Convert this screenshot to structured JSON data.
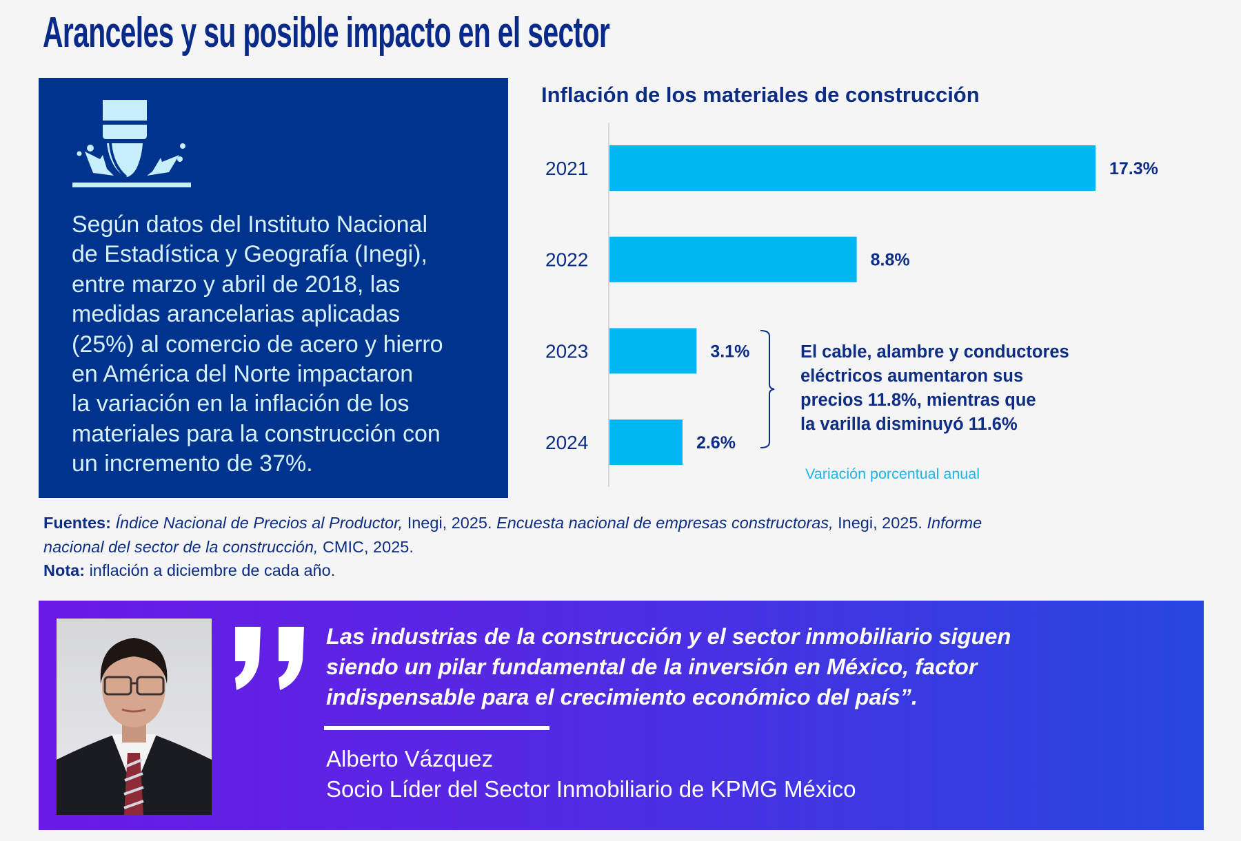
{
  "header": {
    "title": "Aranceles y su posible impacto en el sector"
  },
  "info_box": {
    "icon": "laser-cutting-icon",
    "lines": [
      "Según datos del Instituto Nacional",
      "de Estadística y Geografía (Inegi),",
      "entre marzo y abril de 2018, las",
      "medidas arancelarias aplicadas",
      "(25%) al comercio de acero y hierro",
      "en América del Norte impactaron",
      "la variación en la inflación de los",
      "materiales para la construcción con",
      "un incremento de 37%."
    ]
  },
  "chart_data": {
    "type": "bar",
    "orientation": "horizontal",
    "title": "Inflación de los materiales de construcción",
    "categories": [
      "2021",
      "2022",
      "2023",
      "2024"
    ],
    "values": [
      17.3,
      8.8,
      3.1,
      2.6
    ],
    "value_labels": [
      "17.3%",
      "8.8%",
      "3.1%",
      "2.6%"
    ],
    "xlabel": "Variación porcentual anual",
    "ylabel": "",
    "xlim": [
      0,
      17.3
    ],
    "grid": false,
    "bar_color": "#00b7f1",
    "annotation": {
      "applies_to": [
        "2023",
        "2024"
      ],
      "lines": [
        "El cable, alambre y conductores",
        "eléctricos aumentaron sus",
        "precios 11.8%, mientras que",
        "la varilla disminuyó 11.6%"
      ]
    }
  },
  "footnote": {
    "sources_label": "Fuentes:",
    "line1": [
      {
        "text": "Índice Nacional de Precios al Productor,",
        "italic": true
      },
      {
        "text": " Inegi, 2025. ",
        "italic": false
      },
      {
        "text": "Encuesta nacional de empresas constructoras,",
        "italic": true
      },
      {
        "text": " Inegi, 2025. ",
        "italic": false
      },
      {
        "text": "Informe",
        "italic": true
      }
    ],
    "line2": [
      {
        "text": "nacional del sector de la construcción,",
        "italic": true
      },
      {
        "text": " CMIC, 2025.",
        "italic": false
      }
    ],
    "note_label": "Nota:",
    "note_text": " inflación a diciembre de cada año."
  },
  "quote_band": {
    "photo": "portrait-photo",
    "quote_icon": "closing-quote-icon",
    "quote_lines": [
      "Las industrias de la construcción y el sector inmobiliario siguen",
      "siendo un pilar fundamental de la inversión en México, factor",
      "indispensable para el crecimiento económico del país”."
    ],
    "author_name": "Alberto Vázquez",
    "author_title": "Socio Líder del Sector Inmobiliario de KPMG México"
  },
  "colors": {
    "navy": "#00338d",
    "text_navy": "#0c2d83",
    "cyan_bar": "#00b7f1",
    "band_start": "#6a1ae6",
    "band_end": "#2646e0"
  }
}
